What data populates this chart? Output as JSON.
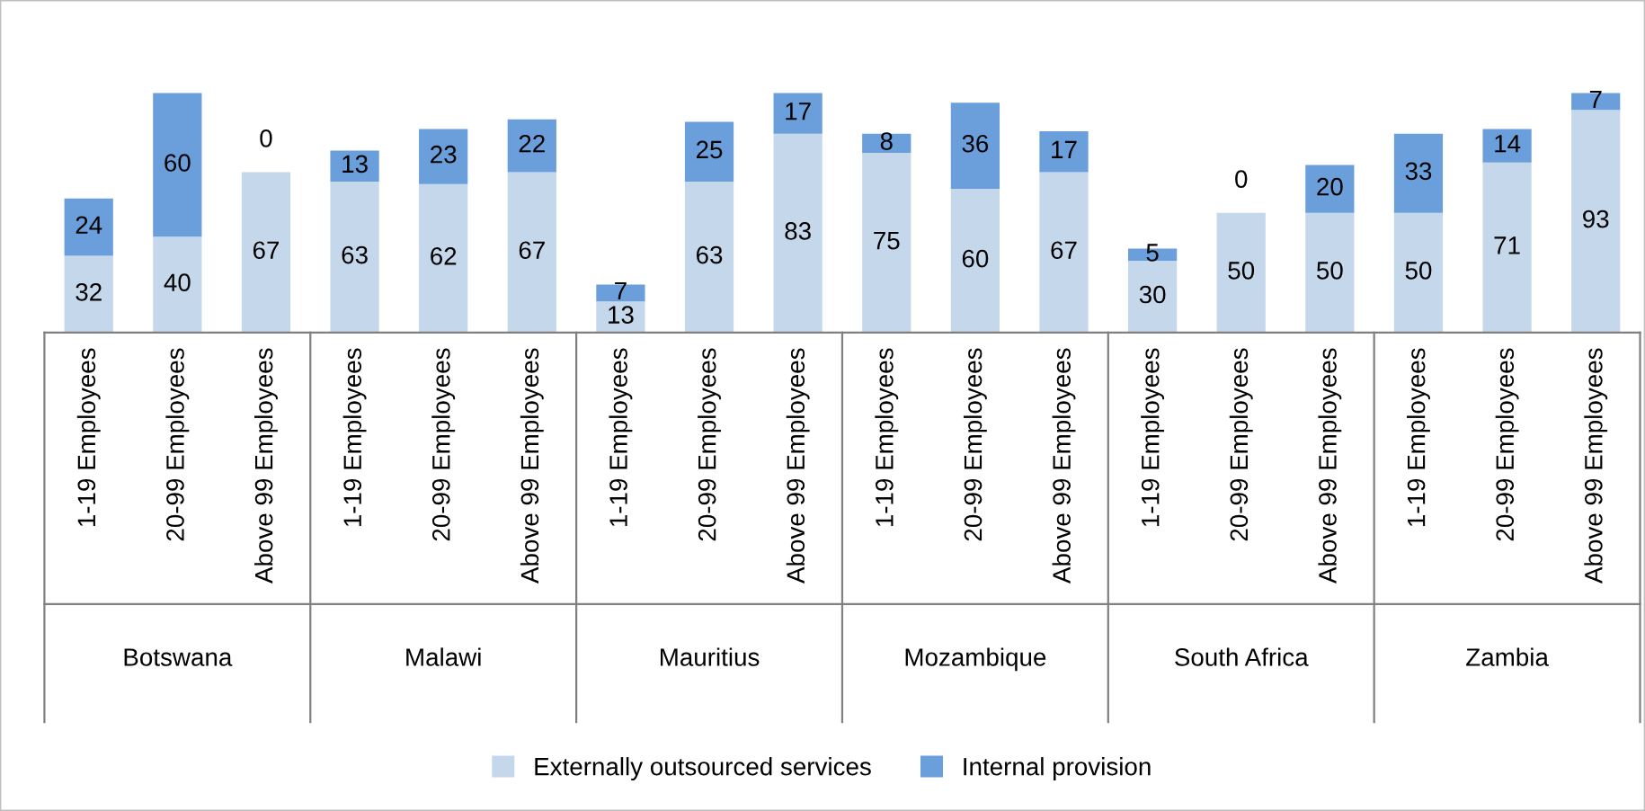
{
  "chart_data": {
    "type": "bar",
    "stacked": true,
    "data_labels": true,
    "legend": "bottom",
    "grid": false,
    "categories": [
      "1-19 Employees",
      "20-99 Employees",
      "Above 99 Employees",
      "1-19 Employees",
      "20-99 Employees",
      "Above 99 Employees",
      "1-19 Employees",
      "20-99 Employees",
      "Above 99 Employees",
      "1-19 Employees",
      "20-99 Employees",
      "Above 99 Employees",
      "1-19 Employees",
      "20-99 Employees",
      "Above 99 Employees",
      "1-19 Employees",
      "20-99 Employees",
      "Above 99 Employees"
    ],
    "series": [
      {
        "name": "Externally outsourced services",
        "color": "#c5d7ea",
        "values": [
          32,
          40,
          67,
          63,
          62,
          67,
          13,
          63,
          83,
          75,
          60,
          67,
          30,
          50,
          50,
          50,
          71,
          93
        ]
      },
      {
        "name": "Internal provision",
        "color": "#6a9fdc",
        "values": [
          24,
          60,
          0,
          13,
          23,
          22,
          7,
          25,
          17,
          8,
          36,
          17,
          5,
          0,
          20,
          33,
          14,
          7
        ]
      }
    ],
    "annotations": [
      "Botswana",
      "Malawi",
      "Mauritius",
      "Mozambique",
      "South Africa",
      "Zambia"
    ]
  }
}
